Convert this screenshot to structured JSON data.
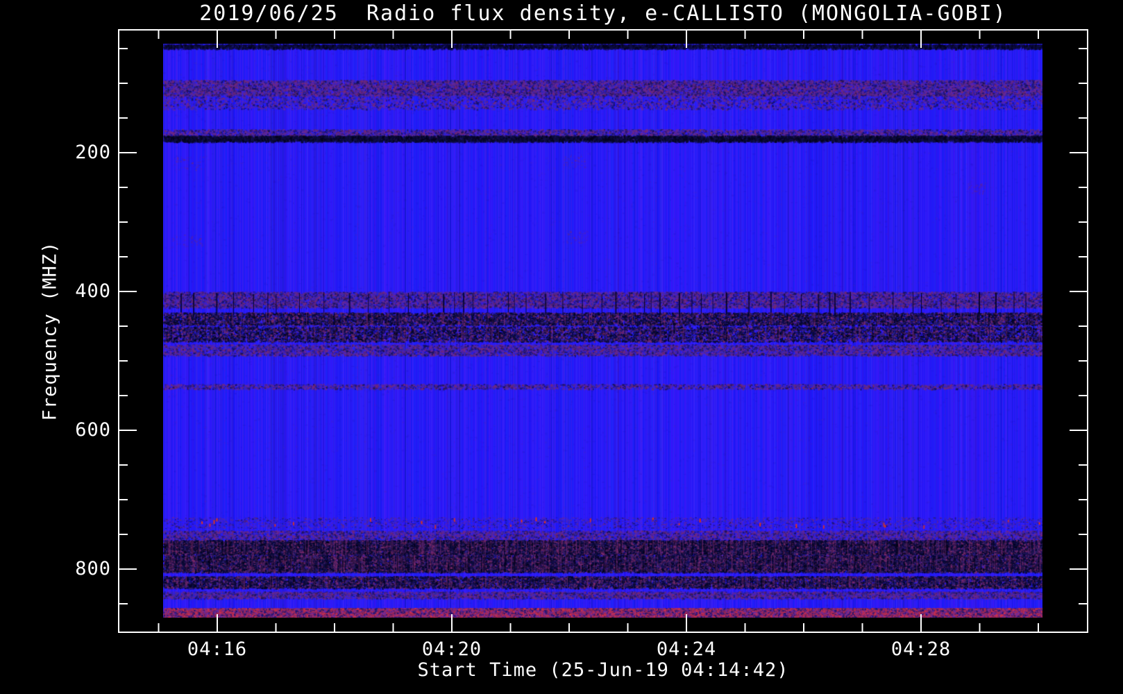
{
  "title": "2019/06/25  Radio flux density, e-CALLISTO (MONGOLIA-GOBI)",
  "chart_data": {
    "type": "heatmap",
    "title": "2019/06/25  Radio flux density, e-CALLISTO (MONGOLIA-GOBI)",
    "xlabel": "Start Time (25-Jun-19 04:14:42)",
    "ylabel": "Frequency (MHZ)",
    "x_tick_labels": [
      "04:16",
      "04:20",
      "04:24",
      "04:28"
    ],
    "x_minor_tick_interval": "1 minute",
    "y_tick_labels": [
      "200",
      "400",
      "600",
      "800"
    ],
    "y_tick_values_mhz": [
      200,
      400,
      600,
      800
    ],
    "y_minor_step_mhz": 50,
    "y_axis_increases_downward": true,
    "y_range_mhz": [
      43,
      870
    ],
    "grid": false,
    "legend": "none",
    "colormap": {
      "background_blue": "#2a20ee",
      "speckle_purple": "#6e2a92",
      "speckle_maroon": "#7a2a6a",
      "dark_navy": "#0b0b3c",
      "near_black": "#04041c",
      "red_dash": "#e23418",
      "bottom_mix": [
        "#a22a55",
        "#6a2aa0",
        "#1a1470",
        "#d0304a"
      ]
    },
    "bands": [
      {
        "f0": 43,
        "f1": 49,
        "style": "edge",
        "density": 5,
        "note": "dark dashes at top edge of image"
      },
      {
        "f0": 95,
        "f1": 117,
        "style": "speckle",
        "density": 14,
        "note": "FM broadcast interference band"
      },
      {
        "f0": 115,
        "f1": 137,
        "style": "speckle",
        "density": 5,
        "note": "faint tail below FM band"
      },
      {
        "f0": 166,
        "f1": 182,
        "style": "speckle",
        "density": 8,
        "note": "VHF interference band"
      },
      {
        "f0": 175,
        "f1": 183,
        "style": "edge",
        "density": 7,
        "note": "dark dash row"
      },
      {
        "f0": 400,
        "f1": 423,
        "style": "speckle",
        "density": 14,
        "note": "UHF band with purple noise"
      },
      {
        "f0": 400,
        "f1": 446,
        "style": "vlines",
        "density": 1,
        "note": "regular dark vertical tick lines (periodic RFI)"
      },
      {
        "f0": 430,
        "f1": 448,
        "style": "dark",
        "density": 11,
        "note": "dark speckled row"
      },
      {
        "f0": 450,
        "f1": 472,
        "style": "dark",
        "density": 10,
        "note": "dark navy speckle band"
      },
      {
        "f0": 476,
        "f1": 492,
        "style": "speckle",
        "density": 8,
        "note": "purple speckle band"
      },
      {
        "f0": 533,
        "f1": 540,
        "style": "speckle",
        "density": 3,
        "note": "very faint band"
      },
      {
        "f0": 725,
        "f1": 741,
        "style": "reddash",
        "density": 6,
        "note": "band with occasional bright red dashes"
      },
      {
        "f0": 744,
        "f1": 757,
        "style": "speckle",
        "density": 6,
        "note": "faint noise band"
      },
      {
        "f0": 758,
        "f1": 779,
        "style": "dark",
        "density": 24,
        "note": "strong dark/maroon RFI band"
      },
      {
        "f0": 780,
        "f1": 804,
        "style": "dark",
        "density": 24,
        "note": "strong dark/maroon RFI band (800 MHz cellular)"
      },
      {
        "f0": 810,
        "f1": 827,
        "style": "dark",
        "density": 12,
        "note": "moderate dark band"
      },
      {
        "f0": 832,
        "f1": 842,
        "style": "speckle",
        "density": 6,
        "note": "faint purple band"
      },
      {
        "f0": 856,
        "f1": 870,
        "style": "bottom",
        "density": 28,
        "note": "dense mixed speckle at bottom edge"
      }
    ],
    "patches": [
      {
        "t0": 0.01,
        "t1": 0.046,
        "f0": 205,
        "f1": 225,
        "note": "faint maroon smudge"
      },
      {
        "t0": 0.455,
        "t1": 0.48,
        "f0": 203,
        "f1": 222,
        "note": "faint maroon smudge"
      },
      {
        "t0": 0.01,
        "t1": 0.046,
        "f0": 317,
        "f1": 335,
        "note": "faint maroon smudge"
      },
      {
        "t0": 0.458,
        "t1": 0.483,
        "f0": 312,
        "f1": 330,
        "note": "faint maroon smudge"
      },
      {
        "t0": 0.915,
        "t1": 0.935,
        "f0": 243,
        "f1": 258,
        "note": "very faint smudge"
      }
    ]
  }
}
